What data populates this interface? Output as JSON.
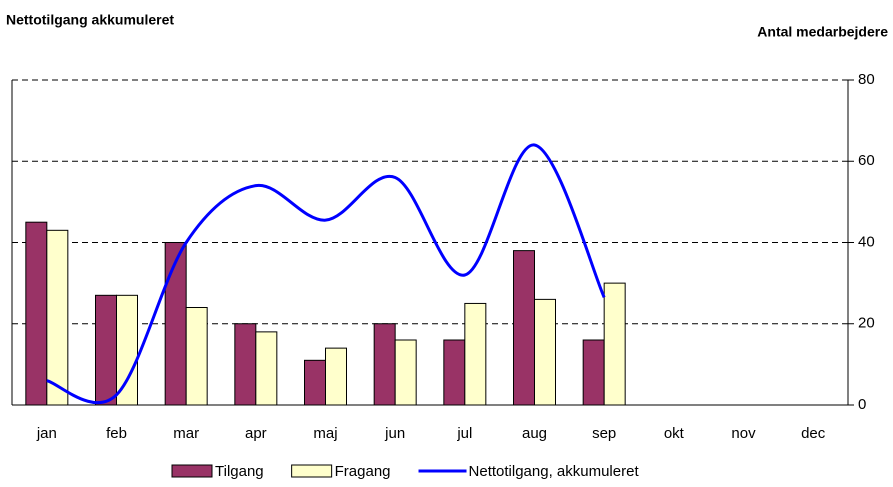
{
  "chart_data": {
    "type": "bar",
    "y_axis_label": "Nettotilgang akkumuleret",
    "y2_axis_label": "Antal medarbejdere",
    "categories": [
      "jan",
      "feb",
      "mar",
      "apr",
      "maj",
      "jun",
      "jul",
      "aug",
      "sep",
      "okt",
      "nov",
      "dec"
    ],
    "series": [
      {
        "name": "Tilgang",
        "type": "bar",
        "color": "#993366",
        "values": [
          45,
          27,
          40,
          20,
          11,
          20,
          16,
          38,
          16,
          null,
          null,
          null
        ]
      },
      {
        "name": "Fragang",
        "type": "bar",
        "color": "#ffffcc",
        "values": [
          43,
          27,
          24,
          18,
          14,
          16,
          25,
          26,
          30,
          null,
          null,
          null
        ]
      },
      {
        "name": "Nettotilgang, akkumuleret",
        "type": "line",
        "color": "#0000ff",
        "values": [
          6,
          2.5,
          40,
          54,
          45.5,
          56,
          32,
          64,
          26.5,
          null,
          null,
          null
        ]
      }
    ],
    "ylim": [
      0,
      80
    ],
    "yticks": [
      0,
      20,
      40,
      60,
      80
    ],
    "grid": true
  }
}
